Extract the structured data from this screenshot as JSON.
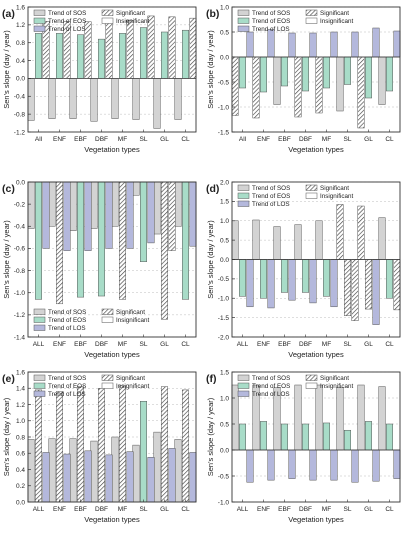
{
  "colors": {
    "sos": "#d3d3d3",
    "eos": "#a8dcc8",
    "los": "#b4b8dc",
    "axis": "#333333",
    "grid": "#bdbdbd"
  },
  "legend_labels": {
    "sos": "Trend of SOS",
    "eos": "Trend of EOS",
    "los": "Trend of LOS",
    "sig": "Significant",
    "insig": "Insignificant"
  },
  "chart_data": [
    {
      "panel": "(a)",
      "type": "bar",
      "xlabel": "Vegetation types",
      "ylabel": "Sen's slope (day / year)",
      "categories": [
        "All",
        "ENF",
        "EBF",
        "DBF",
        "MF",
        "SL",
        "GL",
        "CL"
      ],
      "ylim": [
        -1.2,
        1.6
      ],
      "yticks": [
        -1.2,
        -0.8,
        -0.4,
        0.0,
        0.4,
        0.8,
        1.2,
        1.6
      ],
      "legend_position": "top-left",
      "grid": true,
      "series": [
        {
          "name": "Trend of SOS",
          "values": [
            -0.94,
            -0.9,
            -0.9,
            -0.96,
            -0.9,
            -0.92,
            -1.12,
            -0.92
          ],
          "significant": [
            false,
            false,
            false,
            false,
            false,
            false,
            false,
            false
          ]
        },
        {
          "name": "Trend of EOS",
          "values": [
            1.01,
            1.01,
            0.98,
            0.88,
            1.01,
            1.14,
            1.04,
            1.08
          ],
          "significant": [
            false,
            false,
            false,
            false,
            false,
            false,
            false,
            false
          ]
        },
        {
          "name": "Trend of LOS",
          "values": [
            1.28,
            1.28,
            1.27,
            1.28,
            1.3,
            1.4,
            1.38,
            1.35
          ],
          "significant": [
            true,
            true,
            true,
            true,
            true,
            true,
            true,
            true
          ]
        }
      ]
    },
    {
      "panel": "(b)",
      "type": "bar",
      "xlabel": "Vegetation types",
      "ylabel": "Sen's slope (day / year)",
      "categories": [
        "All",
        "ENF",
        "EBF",
        "DBF",
        "MF",
        "SL",
        "GL",
        "CL"
      ],
      "ylim": [
        -1.5,
        1.0
      ],
      "yticks": [
        -1.5,
        -1.0,
        -0.5,
        0.0,
        0.5,
        1.0
      ],
      "legend_position": "top",
      "grid": true,
      "series": [
        {
          "name": "Trend of SOS",
          "values": [
            -1.17,
            -1.22,
            -0.95,
            -1.2,
            -1.12,
            -1.08,
            -1.42,
            -0.95
          ],
          "significant": [
            true,
            true,
            false,
            true,
            true,
            false,
            true,
            false
          ]
        },
        {
          "name": "Trend of EOS",
          "values": [
            -0.62,
            -0.7,
            -0.58,
            -0.68,
            -0.62,
            -0.55,
            -0.82,
            -0.68
          ],
          "significant": [
            false,
            false,
            false,
            false,
            false,
            false,
            false,
            false
          ]
        },
        {
          "name": "Trend of LOS",
          "values": [
            0.5,
            0.55,
            0.48,
            0.48,
            0.5,
            0.5,
            0.58,
            0.52
          ],
          "significant": [
            false,
            false,
            false,
            false,
            false,
            false,
            false,
            false
          ]
        }
      ]
    },
    {
      "panel": "(c)",
      "type": "bar",
      "xlabel": "Vegetation types",
      "ylabel": "Sen's slope (day / year)",
      "categories": [
        "ALL",
        "ENF",
        "EBF",
        "DBF",
        "MF",
        "SL",
        "GL",
        "CL"
      ],
      "ylim": [
        -1.4,
        0.0
      ],
      "yticks": [
        -1.4,
        -1.2,
        -1.0,
        -0.8,
        -0.6,
        -0.4,
        -0.2,
        0.0
      ],
      "legend_position": "bottom",
      "grid": true,
      "series": [
        {
          "name": "Trend of SOS",
          "values": [
            -0.42,
            -0.4,
            -0.44,
            -0.42,
            -0.4,
            -0.12,
            -0.47,
            -0.4
          ],
          "significant": [
            false,
            false,
            false,
            false,
            false,
            false,
            false,
            false
          ]
        },
        {
          "name": "Trend of EOS",
          "values": [
            -1.06,
            -1.1,
            -1.04,
            -1.03,
            -1.06,
            -0.72,
            -1.24,
            -1.06
          ],
          "significant": [
            false,
            true,
            false,
            false,
            true,
            false,
            true,
            false
          ]
        },
        {
          "name": "Trend of LOS",
          "values": [
            -0.6,
            -0.62,
            -0.62,
            -0.6,
            -0.6,
            -0.55,
            -0.62,
            -0.58
          ],
          "significant": [
            false,
            false,
            false,
            false,
            false,
            false,
            true,
            false
          ]
        }
      ]
    },
    {
      "panel": "(d)",
      "type": "bar",
      "xlabel": "Vegetation types",
      "ylabel": "Sen's slope (day / year)",
      "categories": [
        "ALL",
        "ENF",
        "EBF",
        "DBF",
        "MF",
        "SL",
        "GL",
        "CL"
      ],
      "ylim": [
        -2.0,
        2.0
      ],
      "yticks": [
        -2.0,
        -1.5,
        -1.0,
        -0.5,
        0.0,
        0.5,
        1.0,
        1.5,
        2.0
      ],
      "legend_position": "top",
      "grid": true,
      "series": [
        {
          "name": "Trend of SOS",
          "values": [
            1.0,
            1.02,
            0.85,
            0.9,
            1.0,
            1.42,
            1.38,
            1.08
          ],
          "significant": [
            false,
            false,
            false,
            false,
            false,
            true,
            true,
            false
          ]
        },
        {
          "name": "Trend of EOS",
          "values": [
            -0.95,
            -1.0,
            -0.85,
            -0.85,
            -0.95,
            -1.45,
            -1.28,
            -1.0
          ],
          "significant": [
            false,
            false,
            false,
            false,
            false,
            true,
            true,
            false
          ]
        },
        {
          "name": "Trend of LOS",
          "values": [
            -1.22,
            -1.25,
            -1.05,
            -1.12,
            -1.22,
            -1.58,
            -1.68,
            -1.3
          ],
          "significant": [
            false,
            false,
            false,
            false,
            false,
            true,
            false,
            true
          ]
        }
      ]
    },
    {
      "panel": "(e)",
      "type": "bar",
      "xlabel": "Vegetation types",
      "ylabel": "Sen's slope (day / year)",
      "categories": [
        "ALL",
        "ENF",
        "EBF",
        "DBF",
        "MF",
        "SL",
        "GL",
        "CL"
      ],
      "ylim": [
        0.0,
        1.6
      ],
      "yticks": [
        0.0,
        0.2,
        0.4,
        0.6,
        0.8,
        1.0,
        1.2,
        1.4,
        1.6
      ],
      "legend_position": "top",
      "grid": true,
      "series": [
        {
          "name": "Trend of SOS",
          "values": [
            0.77,
            0.78,
            0.78,
            0.75,
            0.8,
            0.7,
            0.86,
            0.77
          ],
          "significant": [
            false,
            false,
            false,
            false,
            false,
            false,
            false,
            false
          ]
        },
        {
          "name": "Trend of EOS",
          "values": [
            1.38,
            1.36,
            1.42,
            1.4,
            1.43,
            1.24,
            1.42,
            1.38
          ],
          "significant": [
            true,
            true,
            true,
            true,
            true,
            false,
            true,
            true
          ]
        },
        {
          "name": "Trend of LOS",
          "values": [
            0.61,
            0.59,
            0.63,
            0.58,
            0.62,
            0.55,
            0.66,
            0.61
          ],
          "significant": [
            false,
            false,
            false,
            false,
            false,
            false,
            false,
            false
          ]
        }
      ]
    },
    {
      "panel": "(f)",
      "type": "bar",
      "xlabel": "Vegetation types",
      "ylabel": "Sen's slope (day / year)",
      "categories": [
        "ALL",
        "ENF",
        "EBF",
        "DBF",
        "MF",
        "SL",
        "GL",
        "CL"
      ],
      "ylim": [
        -1.0,
        1.5
      ],
      "yticks": [
        -1.0,
        -0.5,
        0.0,
        0.5,
        1.0,
        1.5
      ],
      "legend_position": "top",
      "grid": true,
      "series": [
        {
          "name": "Trend of SOS",
          "values": [
            1.25,
            1.25,
            1.2,
            1.25,
            1.25,
            1.2,
            1.25,
            1.22
          ],
          "significant": [
            false,
            false,
            false,
            false,
            false,
            false,
            false,
            false
          ]
        },
        {
          "name": "Trend of EOS",
          "values": [
            0.5,
            0.55,
            0.5,
            0.5,
            0.52,
            0.38,
            0.55,
            0.5
          ],
          "significant": [
            false,
            false,
            false,
            false,
            false,
            false,
            false,
            false
          ]
        },
        {
          "name": "Trend of LOS",
          "values": [
            -0.62,
            -0.58,
            -0.55,
            -0.58,
            -0.58,
            -0.62,
            -0.6,
            -0.55
          ],
          "significant": [
            false,
            false,
            false,
            false,
            false,
            false,
            false,
            false
          ]
        }
      ]
    }
  ]
}
